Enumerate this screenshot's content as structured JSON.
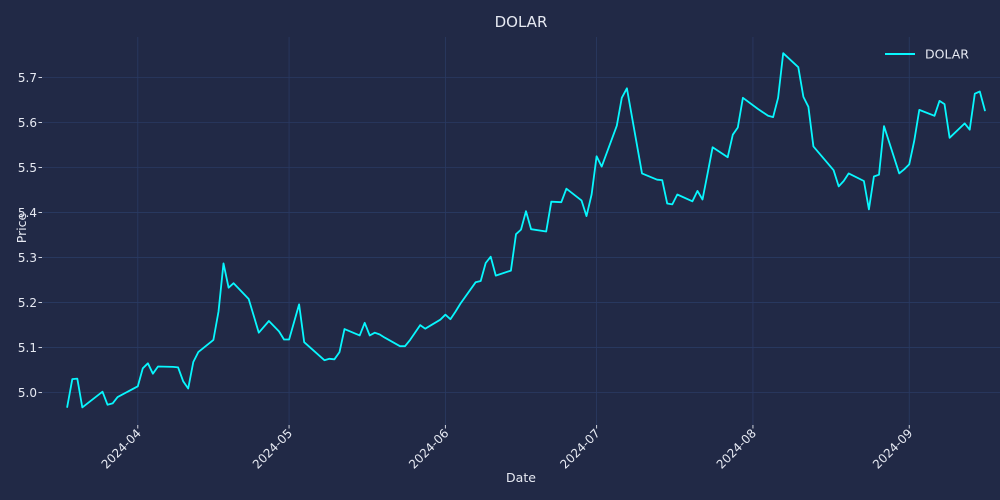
{
  "chart_data": {
    "type": "line",
    "title": "DOLAR",
    "xlabel": "Date",
    "ylabel": "Price",
    "xlim": [
      "2024-03-13",
      "2024-09-19"
    ],
    "ylim": [
      4.928,
      5.79
    ],
    "grid": true,
    "legend_position": "top-right",
    "x_tick_labels": [
      "2024-04",
      "2024-05",
      "2024-06",
      "2024-07",
      "2024-08",
      "2024-09"
    ],
    "y_tick_labels": [
      "5.0",
      "5.1",
      "5.2",
      "5.3",
      "5.4",
      "5.5",
      "5.6",
      "5.7"
    ],
    "y_ticks": [
      5.0,
      5.1,
      5.2,
      5.3,
      5.4,
      5.5,
      5.6,
      5.7
    ],
    "colors": {
      "background": "#212946",
      "grid": "#2a3a63",
      "line": "#08F7FE",
      "text": "#e6e9f2"
    },
    "series": [
      {
        "name": "DOLAR",
        "color": "#08F7FE",
        "points": [
          [
            "2024-03-18",
            4.968
          ],
          [
            "2024-03-19",
            5.03
          ],
          [
            "2024-03-20",
            5.031
          ],
          [
            "2024-03-21",
            4.967
          ],
          [
            "2024-03-25",
            5.002
          ],
          [
            "2024-03-26",
            4.973
          ],
          [
            "2024-03-27",
            4.976
          ],
          [
            "2024-03-28",
            4.99
          ],
          [
            "2024-04-01",
            5.014
          ],
          [
            "2024-04-02",
            5.054
          ],
          [
            "2024-04-03",
            5.065
          ],
          [
            "2024-04-04",
            5.042
          ],
          [
            "2024-04-05",
            5.058
          ],
          [
            "2024-04-08",
            5.057
          ],
          [
            "2024-04-09",
            5.056
          ],
          [
            "2024-04-10",
            5.025
          ],
          [
            "2024-04-11",
            5.009
          ],
          [
            "2024-04-12",
            5.068
          ],
          [
            "2024-04-13",
            5.09
          ],
          [
            "2024-04-16",
            5.117
          ],
          [
            "2024-04-17",
            5.18
          ],
          [
            "2024-04-18",
            5.287
          ],
          [
            "2024-04-19",
            5.233
          ],
          [
            "2024-04-20",
            5.243
          ],
          [
            "2024-04-23",
            5.208
          ],
          [
            "2024-04-25",
            5.133
          ],
          [
            "2024-04-27",
            5.159
          ],
          [
            "2024-04-29",
            5.136
          ],
          [
            "2024-04-30",
            5.118
          ],
          [
            "2024-05-01",
            5.118
          ],
          [
            "2024-05-03",
            5.196
          ],
          [
            "2024-05-04",
            5.112
          ],
          [
            "2024-05-08",
            5.072
          ],
          [
            "2024-05-09",
            5.075
          ],
          [
            "2024-05-10",
            5.074
          ],
          [
            "2024-05-11",
            5.09
          ],
          [
            "2024-05-12",
            5.141
          ],
          [
            "2024-05-15",
            5.127
          ],
          [
            "2024-05-16",
            5.155
          ],
          [
            "2024-05-17",
            5.127
          ],
          [
            "2024-05-18",
            5.133
          ],
          [
            "2024-05-19",
            5.129
          ],
          [
            "2024-05-20",
            5.122
          ],
          [
            "2024-05-23",
            5.103
          ],
          [
            "2024-05-24",
            5.103
          ],
          [
            "2024-05-25",
            5.117
          ],
          [
            "2024-05-27",
            5.15
          ],
          [
            "2024-05-28",
            5.142
          ],
          [
            "2024-05-31",
            5.162
          ],
          [
            "2024-06-01",
            5.173
          ],
          [
            "2024-06-02",
            5.163
          ],
          [
            "2024-06-03",
            5.18
          ],
          [
            "2024-06-04",
            5.198
          ],
          [
            "2024-06-07",
            5.245
          ],
          [
            "2024-06-08",
            5.248
          ],
          [
            "2024-06-09",
            5.288
          ],
          [
            "2024-06-10",
            5.302
          ],
          [
            "2024-06-11",
            5.26
          ],
          [
            "2024-06-14",
            5.271
          ],
          [
            "2024-06-15",
            5.352
          ],
          [
            "2024-06-16",
            5.362
          ],
          [
            "2024-06-17",
            5.403
          ],
          [
            "2024-06-18",
            5.363
          ],
          [
            "2024-06-21",
            5.358
          ],
          [
            "2024-06-22",
            5.424
          ],
          [
            "2024-06-24",
            5.423
          ],
          [
            "2024-06-25",
            5.453
          ],
          [
            "2024-06-28",
            5.427
          ],
          [
            "2024-06-29",
            5.392
          ],
          [
            "2024-06-30",
            5.44
          ],
          [
            "2024-07-01",
            5.525
          ],
          [
            "2024-07-02",
            5.502
          ],
          [
            "2024-07-05",
            5.593
          ],
          [
            "2024-07-06",
            5.655
          ],
          [
            "2024-07-07",
            5.676
          ],
          [
            "2024-07-10",
            5.487
          ],
          [
            "2024-07-13",
            5.473
          ],
          [
            "2024-07-14",
            5.472
          ],
          [
            "2024-07-15",
            5.42
          ],
          [
            "2024-07-16",
            5.418
          ],
          [
            "2024-07-17",
            5.44
          ],
          [
            "2024-07-20",
            5.425
          ],
          [
            "2024-07-21",
            5.448
          ],
          [
            "2024-07-22",
            5.429
          ],
          [
            "2024-07-23",
            5.487
          ],
          [
            "2024-07-24",
            5.545
          ],
          [
            "2024-07-27",
            5.523
          ],
          [
            "2024-07-28",
            5.573
          ],
          [
            "2024-07-29",
            5.589
          ],
          [
            "2024-07-30",
            5.655
          ],
          [
            "2024-08-02",
            5.63
          ],
          [
            "2024-08-04",
            5.615
          ],
          [
            "2024-08-05",
            5.612
          ],
          [
            "2024-08-06",
            5.655
          ],
          [
            "2024-08-07",
            5.754
          ],
          [
            "2024-08-10",
            5.723
          ],
          [
            "2024-08-11",
            5.657
          ],
          [
            "2024-08-12",
            5.635
          ],
          [
            "2024-08-13",
            5.547
          ],
          [
            "2024-08-17",
            5.494
          ],
          [
            "2024-08-18",
            5.458
          ],
          [
            "2024-08-19",
            5.47
          ],
          [
            "2024-08-20",
            5.487
          ],
          [
            "2024-08-23",
            5.47
          ],
          [
            "2024-08-24",
            5.407
          ],
          [
            "2024-08-25",
            5.48
          ],
          [
            "2024-08-26",
            5.484
          ],
          [
            "2024-08-27",
            5.592
          ],
          [
            "2024-08-30",
            5.487
          ],
          [
            "2024-08-31",
            5.496
          ],
          [
            "2024-09-01",
            5.507
          ],
          [
            "2024-09-02",
            5.56
          ],
          [
            "2024-09-03",
            5.628
          ],
          [
            "2024-09-06",
            5.615
          ],
          [
            "2024-09-07",
            5.648
          ],
          [
            "2024-09-08",
            5.641
          ],
          [
            "2024-09-09",
            5.566
          ],
          [
            "2024-09-12",
            5.598
          ],
          [
            "2024-09-13",
            5.584
          ],
          [
            "2024-09-14",
            5.664
          ],
          [
            "2024-09-15",
            5.669
          ],
          [
            "2024-09-16",
            5.627
          ]
        ]
      }
    ]
  }
}
